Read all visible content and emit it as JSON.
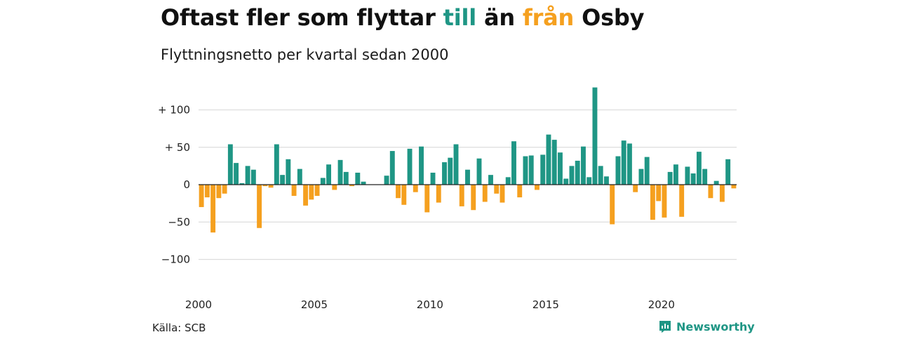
{
  "title": {
    "part1": "Oftast fler som flyttar ",
    "till": "till",
    "part2": " än ",
    "fran": "från",
    "part3": " Osby"
  },
  "subtitle": "Flyttningsnetto per kvartal sedan 2000",
  "source": "Källa: SCB",
  "brand": {
    "name": "Newsworthy",
    "icon": "newsworthy-logo-icon"
  },
  "colors": {
    "positive": "#1f9685",
    "negative": "#f5a01f",
    "grid": "#dddddd",
    "zero": "#222222"
  },
  "chart_data": {
    "type": "bar",
    "title": "Oftast fler som flyttar till än från Osby",
    "subtitle": "Flyttningsnetto per kvartal sedan 2000",
    "x_start": 2000,
    "periods_per_year": 4,
    "ylim": [
      -120,
      135
    ],
    "yticks": [
      {
        "value": 100,
        "label": "+ 100"
      },
      {
        "value": 50,
        "label": "+  50"
      },
      {
        "value": 0,
        "label": "0"
      },
      {
        "value": -50,
        "label": "−50"
      },
      {
        "value": -100,
        "label": "−100"
      }
    ],
    "xticks": [
      {
        "value": 2000,
        "label": "2000"
      },
      {
        "value": 2005,
        "label": "2005"
      },
      {
        "value": 2010,
        "label": "2010"
      },
      {
        "value": 2015,
        "label": "2015"
      },
      {
        "value": 2020,
        "label": "2020"
      }
    ],
    "grid": true,
    "values": [
      -30,
      -17,
      -64,
      -18,
      -12,
      54,
      29,
      2,
      25,
      20,
      -58,
      -2,
      -4,
      54,
      13,
      34,
      -15,
      21,
      -28,
      -20,
      -15,
      9,
      27,
      -7,
      33,
      17,
      -2,
      16,
      4,
      0,
      0,
      0,
      12,
      45,
      -18,
      -27,
      48,
      -10,
      51,
      -37,
      16,
      -24,
      30,
      36,
      54,
      -29,
      20,
      -34,
      35,
      -23,
      13,
      -12,
      -24,
      10,
      58,
      -17,
      38,
      39,
      -7,
      40,
      67,
      60,
      43,
      8,
      25,
      32,
      51,
      10,
      130,
      25,
      11,
      -53,
      38,
      59,
      55,
      -10,
      21,
      37,
      -47,
      -22,
      -44,
      17,
      27,
      -43,
      24,
      15,
      44,
      21,
      -18,
      5,
      -23,
      34,
      -5
    ]
  }
}
